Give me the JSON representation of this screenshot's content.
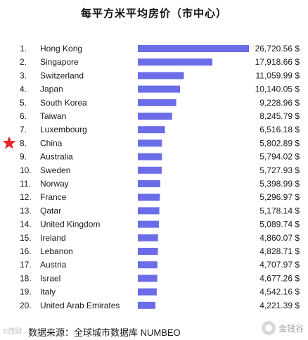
{
  "chart_data": {
    "type": "bar",
    "title": "每平方米平均房价（市中心）",
    "orientation": "horizontal",
    "unit": "$",
    "ranks": [
      "1.",
      "2.",
      "3.",
      "4.",
      "5.",
      "6.",
      "7.",
      "8.",
      "9.",
      "10.",
      "11.",
      "12.",
      "13.",
      "14.",
      "15.",
      "16.",
      "17.",
      "18.",
      "19.",
      "20."
    ],
    "categories": [
      "Hong Kong",
      "Singapore",
      "Switzerland",
      "Japan",
      "South Korea",
      "Taiwan",
      "Luxembourg",
      "China",
      "Australia",
      "Sweden",
      "Norway",
      "France",
      "Qatar",
      "United Kingdom",
      "Ireland",
      "Lebanon",
      "Austria",
      "Israel",
      "Italy",
      "United Arab Emirates"
    ],
    "values": [
      26720.56,
      17918.66,
      11059.99,
      10140.05,
      9228.96,
      8245.79,
      6516.18,
      5802.89,
      5794.02,
      5727.93,
      5398.99,
      5296.97,
      5178.14,
      5089.74,
      4860.07,
      4828.71,
      4707.97,
      4677.26,
      4542.16,
      4221.39
    ],
    "value_labels": [
      "26,720.56 $",
      "17,918.66 $",
      "11,059.99 $",
      "10,140.05 $",
      "9,228.96 $",
      "8,245.79 $",
      "6,516.18 $",
      "5,802.89 $",
      "5,794.02 $",
      "5,727.93 $",
      "5,398.99 $",
      "5,296.97 $",
      "5,178.14 $",
      "5,089.74 $",
      "4,860.07 $",
      "4,828.71 $",
      "4,707.97 $",
      "4,677.26 $",
      "4,542.16 $",
      "4,221.39 $"
    ],
    "highlight_category": "China",
    "bar_color": "#6b6de8",
    "highlight_marker_color": "#e8262a"
  },
  "source_text": "数据来源：全球城市数据库 NUMBEO",
  "watermark_left": "©西财...",
  "logo_text": "金钱谷",
  "logo_icon": "bean-logo-icon"
}
